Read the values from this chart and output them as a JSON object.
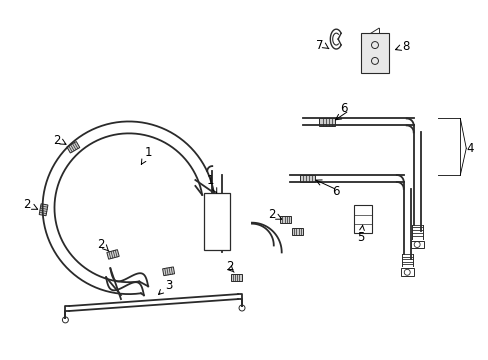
{
  "background_color": "#ffffff",
  "line_color": "#2a2a2a",
  "text_color": "#000000",
  "figsize": [
    4.89,
    3.6
  ],
  "dpi": 100,
  "lw_hose": 1.3,
  "lw_thin": 0.8
}
